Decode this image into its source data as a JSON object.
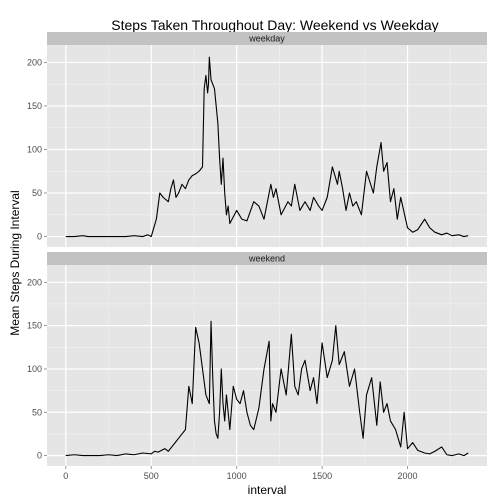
{
  "chart_data": {
    "type": "line",
    "title": "Steps Taken Throughout Day: Weekend vs Weekday",
    "xlabel": "interval",
    "ylabel": "Mean Steps During Interval",
    "xlim": [
      -110,
      2465
    ],
    "ylim": [
      -12,
      220
    ],
    "xticks": [
      0,
      500,
      1000,
      1500,
      2000
    ],
    "yticks": [
      0,
      50,
      100,
      150,
      200
    ],
    "x_tick_labels": [
      "0",
      "500",
      "1000",
      "1500",
      "2000"
    ],
    "y_tick_labels": [
      "0",
      "50",
      "100",
      "150",
      "200"
    ],
    "grid": true,
    "legend": "none",
    "line_color": "#000000",
    "panels": [
      {
        "name": "weekday",
        "x": [
          0,
          50,
          100,
          130,
          200,
          300,
          350,
          400,
          450,
          480,
          500,
          530,
          550,
          570,
          600,
          615,
          630,
          645,
          660,
          680,
          700,
          720,
          740,
          760,
          780,
          800,
          810,
          820,
          830,
          835,
          840,
          850,
          860,
          870,
          880,
          890,
          900,
          910,
          920,
          930,
          940,
          950,
          960,
          1000,
          1030,
          1060,
          1100,
          1130,
          1160,
          1200,
          1215,
          1230,
          1260,
          1300,
          1320,
          1340,
          1370,
          1400,
          1430,
          1450,
          1480,
          1500,
          1530,
          1560,
          1590,
          1600,
          1620,
          1640,
          1660,
          1680,
          1700,
          1730,
          1760,
          1800,
          1820,
          1845,
          1860,
          1880,
          1900,
          1920,
          1940,
          1960,
          2000,
          2030,
          2060,
          2100,
          2130,
          2160,
          2200,
          2230,
          2260,
          2300,
          2330,
          2355
        ],
        "y": [
          0,
          0,
          1,
          0,
          0,
          0,
          0,
          1,
          0,
          2,
          0,
          20,
          50,
          45,
          40,
          55,
          65,
          45,
          50,
          60,
          55,
          65,
          70,
          72,
          75,
          80,
          170,
          185,
          165,
          175,
          206,
          180,
          175,
          170,
          150,
          130,
          90,
          60,
          90,
          50,
          25,
          35,
          15,
          30,
          20,
          18,
          40,
          35,
          20,
          60,
          45,
          55,
          25,
          40,
          35,
          60,
          30,
          40,
          30,
          45,
          35,
          30,
          45,
          80,
          60,
          75,
          55,
          30,
          50,
          35,
          40,
          25,
          75,
          50,
          80,
          108,
          75,
          85,
          40,
          55,
          20,
          45,
          10,
          5,
          8,
          20,
          10,
          5,
          2,
          4,
          1,
          2,
          0,
          1
        ]
      },
      {
        "name": "weekend",
        "x": [
          0,
          50,
          100,
          150,
          200,
          250,
          300,
          350,
          400,
          450,
          500,
          520,
          540,
          560,
          580,
          600,
          620,
          640,
          660,
          680,
          700,
          720,
          740,
          760,
          780,
          800,
          820,
          840,
          850,
          860,
          870,
          880,
          890,
          900,
          910,
          920,
          930,
          940,
          960,
          980,
          1000,
          1020,
          1040,
          1060,
          1080,
          1100,
          1130,
          1160,
          1190,
          1200,
          1210,
          1230,
          1260,
          1290,
          1320,
          1340,
          1360,
          1380,
          1400,
          1430,
          1450,
          1470,
          1500,
          1530,
          1560,
          1580,
          1600,
          1630,
          1660,
          1690,
          1720,
          1740,
          1760,
          1790,
          1820,
          1840,
          1860,
          1880,
          1900,
          1930,
          1960,
          1980,
          2000,
          2030,
          2060,
          2100,
          2130,
          2160,
          2200,
          2230,
          2260,
          2300,
          2330,
          2355
        ],
        "y": [
          0,
          1,
          0,
          0,
          0,
          1,
          0,
          2,
          1,
          3,
          2,
          5,
          4,
          6,
          8,
          5,
          10,
          15,
          20,
          25,
          30,
          80,
          60,
          148,
          130,
          100,
          70,
          60,
          155,
          90,
          40,
          25,
          20,
          50,
          100,
          60,
          40,
          70,
          30,
          80,
          65,
          60,
          75,
          50,
          35,
          30,
          55,
          100,
          132,
          40,
          60,
          50,
          100,
          70,
          140,
          80,
          70,
          100,
          110,
          75,
          90,
          60,
          130,
          90,
          110,
          150,
          105,
          120,
          80,
          100,
          50,
          20,
          70,
          90,
          35,
          85,
          50,
          60,
          40,
          30,
          10,
          50,
          8,
          15,
          6,
          3,
          2,
          5,
          10,
          1,
          0,
          2,
          0,
          3
        ]
      }
    ]
  }
}
